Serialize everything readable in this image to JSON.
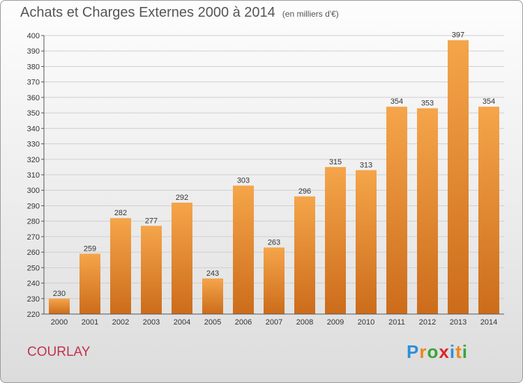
{
  "title": "Achats et Charges Externes 2000 à 2014",
  "unit_note": "(en milliers d'€)",
  "commune": "COURLAY",
  "logo": {
    "text": "Proxiti",
    "colors": [
      "#2f8fd8",
      "#e8891a",
      "#3aa33a",
      "#d8282c",
      "#2f8fd8",
      "#e8891a",
      "#3aa33a"
    ]
  },
  "colors": {
    "bar_top": "#f5a54a",
    "bar_bottom": "#cc6c1b",
    "commune": "#c0334d"
  },
  "chart_data": {
    "type": "bar",
    "categories": [
      "2000",
      "2001",
      "2002",
      "2003",
      "2004",
      "2005",
      "2006",
      "2007",
      "2008",
      "2009",
      "2010",
      "2011",
      "2012",
      "2013",
      "2014"
    ],
    "values": [
      230,
      259,
      282,
      277,
      292,
      243,
      303,
      263,
      296,
      315,
      313,
      354,
      353,
      397,
      354
    ],
    "ylim": [
      220,
      400
    ],
    "yticks": [
      220,
      230,
      240,
      250,
      260,
      270,
      280,
      290,
      300,
      310,
      320,
      330,
      340,
      350,
      360,
      370,
      380,
      390,
      400
    ],
    "grid": true
  }
}
